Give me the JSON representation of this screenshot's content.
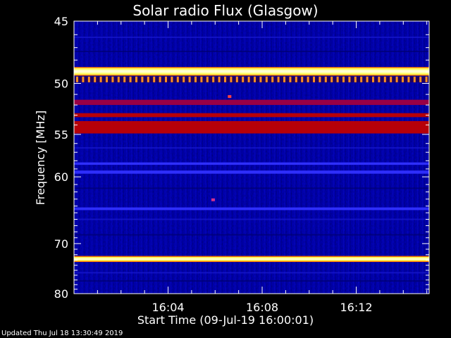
{
  "chart_data": {
    "type": "heatmap",
    "title": "Solar radio Flux (Glasgow)",
    "xlabel": "Start Time (09-Jul-19 16:00:01)",
    "ylabel": "Frequency [MHz]",
    "x_range_minutes": [
      0,
      15.1
    ],
    "x_ticks": [
      {
        "minute": 4,
        "label": "16:04"
      },
      {
        "minute": 8,
        "label": "16:08"
      },
      {
        "minute": 12,
        "label": "16:12"
      }
    ],
    "ylim": [
      45,
      80
    ],
    "y_ticks": [
      45,
      50,
      55,
      60,
      70,
      80
    ],
    "y_scale": "reciprocal",
    "background_level": "low (blue)",
    "bands_mhz": [
      {
        "from": 48.7,
        "to": 49.2,
        "intensity": "saturated (white/yellow)"
      },
      {
        "from": 49.4,
        "to": 49.9,
        "intensity": "high (orange, periodic)"
      },
      {
        "from": 51.5,
        "to": 52.0,
        "intensity": "medium-high (red)"
      },
      {
        "from": 52.8,
        "to": 53.2,
        "intensity": "high (red)"
      },
      {
        "from": 53.6,
        "to": 54.9,
        "intensity": "high (red)"
      },
      {
        "from": 58.2,
        "to": 58.5,
        "intensity": "medium (light blue)"
      },
      {
        "from": 59.2,
        "to": 59.6,
        "intensity": "medium (light blue)"
      },
      {
        "from": 64.2,
        "to": 64.6,
        "intensity": "medium (light blue)"
      },
      {
        "from": 72.5,
        "to": 73.1,
        "intensity": "saturated (white/yellow)"
      }
    ],
    "spots": [
      {
        "minute": 6.6,
        "mhz": 51.2,
        "intensity": "high"
      },
      {
        "minute": 5.9,
        "mhz": 63.1,
        "intensity": "medium"
      }
    ],
    "colors": {
      "low": "#0000a0",
      "medium": "#3030ff",
      "high": "#c00000",
      "saturated": "#ffffd0"
    },
    "footer": "Updated Thu Jul 18 13:30:49 2019"
  }
}
